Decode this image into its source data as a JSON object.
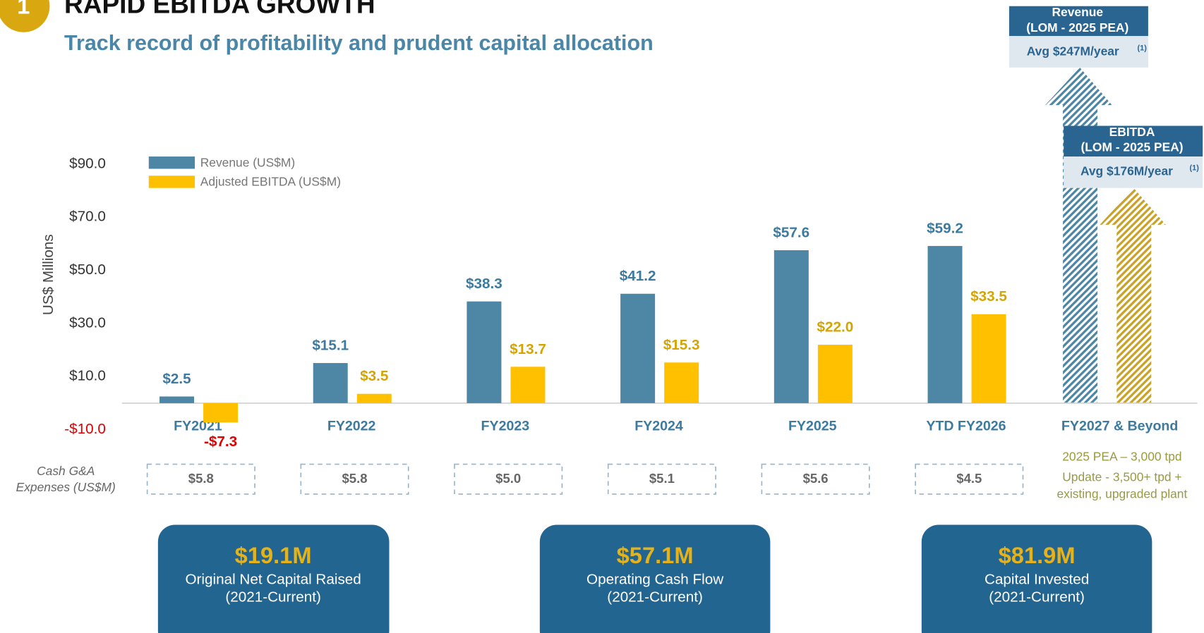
{
  "chart_data": {
    "type": "bar",
    "title": "RAPID EBITDA GROWTH",
    "subtitle": "Track record of profitability and prudent capital allocation",
    "section_number": "1",
    "y_label": "US$ Millions",
    "categories": [
      "FY2021",
      "FY2022",
      "FY2023",
      "FY2024",
      "FY2025",
      "YTD FY2026",
      "FY2027 & Beyond"
    ],
    "series": [
      {
        "name": "Revenue (US$M)",
        "color": "#4e87a5",
        "label_color": "#3c7aa0",
        "values": [
          2.5,
          15.1,
          38.3,
          41.2,
          57.6,
          59.2,
          null
        ],
        "value_labels": [
          "$2.5",
          "$15.1",
          "$38.3",
          "$41.2",
          "$57.6",
          "$59.2",
          null
        ]
      },
      {
        "name": "Adjusted EBITDA (US$M)",
        "color": "#ffc000",
        "label_color": "#d4a400",
        "values": [
          -7.3,
          3.5,
          13.7,
          15.3,
          22.0,
          33.5,
          null
        ],
        "value_labels": [
          "-$7.3",
          "$3.5",
          "$13.7",
          "$15.3",
          "$22.0",
          "$33.5",
          null
        ]
      }
    ],
    "ylim": [
      -10,
      90
    ],
    "yticks": [
      {
        "value": -10,
        "label": "-$10.0"
      },
      {
        "value": 10,
        "label": "$10.0"
      },
      {
        "value": 30,
        "label": "$30.0"
      },
      {
        "value": 50,
        "label": "$50.0"
      },
      {
        "value": 70,
        "label": "$70.0"
      },
      {
        "value": 90,
        "label": "$90.0"
      }
    ],
    "legend": "top-left"
  },
  "cash_ga": {
    "label": [
      "Cash G&A",
      "Expenses (US$M)"
    ],
    "values": [
      5.8,
      5.8,
      5.0,
      5.1,
      5.6,
      4.5
    ],
    "value_labels": [
      "$5.8",
      "$5.8",
      "$5.0",
      "$5.1",
      "$5.6",
      "$4.5"
    ]
  },
  "outlook_notes": [
    "2025 PEA – 3,000 tpd",
    "Update - 3,500+ tpd +",
    "existing, upgraded plant"
  ],
  "arrows": [
    {
      "title": "Revenue",
      "subtitle": "(LOM - 2025 PEA)",
      "average": "Avg $247M/year",
      "note": "(1)"
    },
    {
      "title": "EBITDA",
      "subtitle": "(LOM - 2025 PEA)",
      "average": "Avg $176M/year",
      "note": "(1)"
    }
  ],
  "callouts": [
    {
      "value": "$19.1M",
      "lines": [
        "Original Net Capital Raised",
        "(2021-Current)"
      ]
    },
    {
      "value": "$57.1M",
      "lines": [
        "Operating Cash Flow",
        "(2021-Current)"
      ]
    },
    {
      "value": "$81.9M",
      "lines": [
        "Capital Invested",
        "(2021-Current)"
      ]
    }
  ]
}
